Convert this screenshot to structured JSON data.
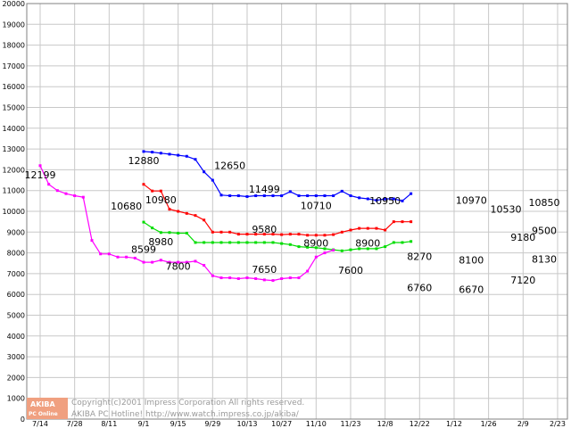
{
  "chart_data": {
    "type": "line",
    "title": "",
    "xlabel": "",
    "ylabel": "",
    "ylim": [
      0,
      20000
    ],
    "yticks": [
      0,
      1000,
      2000,
      3000,
      4000,
      5000,
      6000,
      7000,
      8000,
      9000,
      10000,
      11000,
      12000,
      13000,
      14000,
      15000,
      16000,
      17000,
      18000,
      19000,
      20000
    ],
    "grid": true,
    "x_ticks": [
      "7/14",
      "7/28",
      "8/11",
      "9/1",
      "9/15",
      "9/29",
      "10/13",
      "10/27",
      "11/10",
      "11/23",
      "12/8",
      "12/22",
      "1/12",
      "1/26",
      "2/9",
      "2/23"
    ],
    "x_tick_index": [
      0,
      4,
      8,
      12,
      16,
      20,
      24,
      28,
      32,
      36,
      40,
      44,
      48,
      52,
      56,
      60
    ],
    "series": [
      {
        "color": "#0000ff",
        "start_index": 12,
        "values": [
          12880,
          12850,
          12800,
          12750,
          12700,
          12650,
          12500,
          11900,
          11499,
          10780,
          10750,
          10750,
          10710,
          10750,
          10750,
          10750,
          10750,
          10950,
          10750,
          10750,
          10750,
          10750,
          10750,
          10970,
          10750,
          10650,
          10600,
          10530,
          10600,
          10600,
          10500,
          10850
        ]
      },
      {
        "color": "#ff0000",
        "start_index": 12,
        "values": [
          11300,
          10980,
          10980,
          10100,
          10000,
          9900,
          9800,
          9580,
          9000,
          9000,
          9000,
          8900,
          8900,
          8900,
          8900,
          8900,
          8880,
          8900,
          8900,
          8850,
          8850,
          8850,
          8880,
          9000,
          9100,
          9180,
          9180,
          9180,
          9100,
          9500,
          9500,
          9500
        ]
      },
      {
        "color": "#00dd00",
        "start_index": 12,
        "values": [
          9480,
          9200,
          8980,
          8980,
          8950,
          8950,
          8500,
          8500,
          8500,
          8500,
          8500,
          8500,
          8500,
          8500,
          8500,
          8500,
          8450,
          8400,
          8300,
          8270,
          8250,
          8200,
          8150,
          8100,
          8150,
          8200,
          8200,
          8200,
          8300,
          8500,
          8500,
          8550
        ]
      },
      {
        "color": "#ff00ff",
        "start_index": 0,
        "values": [
          12199,
          11300,
          11000,
          10850,
          10750,
          10680,
          8599,
          7950,
          7950,
          7800,
          7800,
          7750,
          7550,
          7550,
          7650,
          7550,
          7550,
          7550,
          7600,
          7400,
          6900,
          6800,
          6800,
          6760,
          6800,
          6760,
          6700,
          6670,
          6760,
          6800,
          6800,
          7120,
          7800,
          8000,
          8130
        ]
      }
    ],
    "data_labels": [
      {
        "text": "12199",
        "x_index": 0,
        "y": 12199,
        "color": "#000000"
      },
      {
        "text": "10680",
        "x_index": 10,
        "y": 10680,
        "color": "#000000"
      },
      {
        "text": "8599",
        "x_index": 12,
        "y": 8599,
        "color": "#000000"
      },
      {
        "text": "12880",
        "x_index": 12,
        "y": 12880,
        "color": "#000000"
      },
      {
        "text": "12650",
        "x_index": 22,
        "y": 12650,
        "color": "#000000"
      },
      {
        "text": "11499",
        "x_index": 26,
        "y": 11499,
        "color": "#000000"
      },
      {
        "text": "10980",
        "x_index": 14,
        "y": 10980,
        "color": "#000000"
      },
      {
        "text": "9580",
        "x_index": 26,
        "y": 9580,
        "color": "#000000"
      },
      {
        "text": "8980",
        "x_index": 14,
        "y": 8980,
        "color": "#000000"
      },
      {
        "text": "7800",
        "x_index": 16,
        "y": 7800,
        "color": "#000000"
      },
      {
        "text": "7650",
        "x_index": 26,
        "y": 7650,
        "color": "#000000"
      },
      {
        "text": "10710",
        "x_index": 32,
        "y": 10710,
        "color": "#000000"
      },
      {
        "text": "8900",
        "x_index": 32,
        "y": 8900,
        "color": "#000000"
      },
      {
        "text": "8900",
        "x_index": 38,
        "y": 8900,
        "color": "#000000"
      },
      {
        "text": "7600",
        "x_index": 36,
        "y": 7600,
        "color": "#000000"
      },
      {
        "text": "10950",
        "x_index": 40,
        "y": 10950,
        "color": "#000000"
      },
      {
        "text": "8270",
        "x_index": 44,
        "y": 8270,
        "color": "#000000"
      },
      {
        "text": "6760",
        "x_index": 44,
        "y": 6760,
        "color": "#000000"
      },
      {
        "text": "10970",
        "x_index": 50,
        "y": 10970,
        "color": "#000000"
      },
      {
        "text": "8100",
        "x_index": 50,
        "y": 8100,
        "color": "#000000"
      },
      {
        "text": "6670",
        "x_index": 50,
        "y": 6670,
        "color": "#000000"
      },
      {
        "text": "10530",
        "x_index": 54,
        "y": 10530,
        "color": "#000000"
      },
      {
        "text": "9180",
        "x_index": 56,
        "y": 9180,
        "color": "#000000"
      },
      {
        "text": "7120",
        "x_index": 56,
        "y": 7120,
        "color": "#000000"
      },
      {
        "text": "10850",
        "x_index": 61,
        "y": 10850,
        "color": "#000000"
      },
      {
        "text": "9500",
        "x_index": 61,
        "y": 9500,
        "color": "#000000"
      },
      {
        "text": "8130",
        "x_index": 61,
        "y": 8130,
        "color": "#000000"
      }
    ]
  },
  "watermark": {
    "line1": "Copyright(c)2001 Impress Corporation All rights reserved.",
    "line2": "AKIBA PC Hotline!  http://www.watch.impress.co.jp/akiba/",
    "logo_top": "AKIBA",
    "logo_bottom": "PC Online"
  },
  "colors": {
    "grid": "#c8c8c8",
    "background": "#ffffff",
    "logo": "#f0a080"
  }
}
